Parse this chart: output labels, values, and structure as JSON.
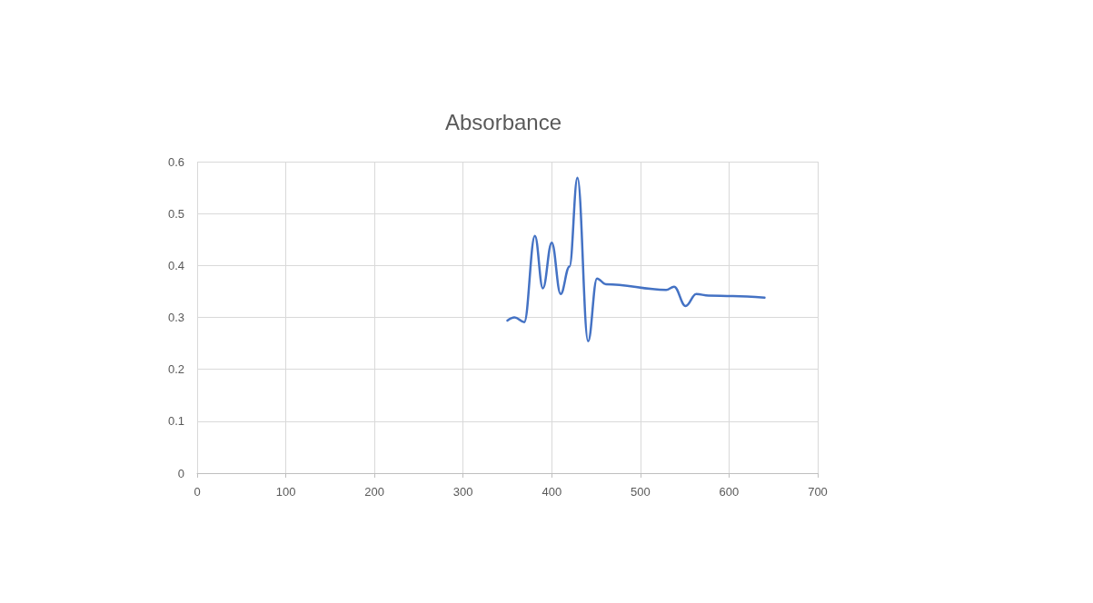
{
  "chart_data": {
    "type": "line",
    "title": "Absorbance",
    "x": [
      350,
      358,
      369,
      381,
      390,
      400,
      410,
      420,
      429,
      441,
      451,
      461,
      529,
      538,
      551,
      563,
      577,
      604,
      640
    ],
    "series": [
      {
        "color": "#4472c4",
        "values": [
          0.294,
          0.3,
          0.291,
          0.457,
          0.356,
          0.444,
          0.345,
          0.398,
          0.569,
          0.254,
          0.375,
          0.364,
          0.353,
          0.359,
          0.322,
          0.345,
          0.342,
          0.341,
          0.338
        ]
      }
    ],
    "xlim": [
      0,
      700
    ],
    "xticks": [
      0,
      100,
      200,
      300,
      400,
      500,
      600,
      700
    ],
    "ylim": [
      0,
      0.6
    ],
    "yticks": [
      0,
      0.1,
      0.2,
      0.3,
      0.4,
      0.5,
      0.6
    ],
    "grid": true,
    "marker": "none",
    "line_style": "solid"
  }
}
